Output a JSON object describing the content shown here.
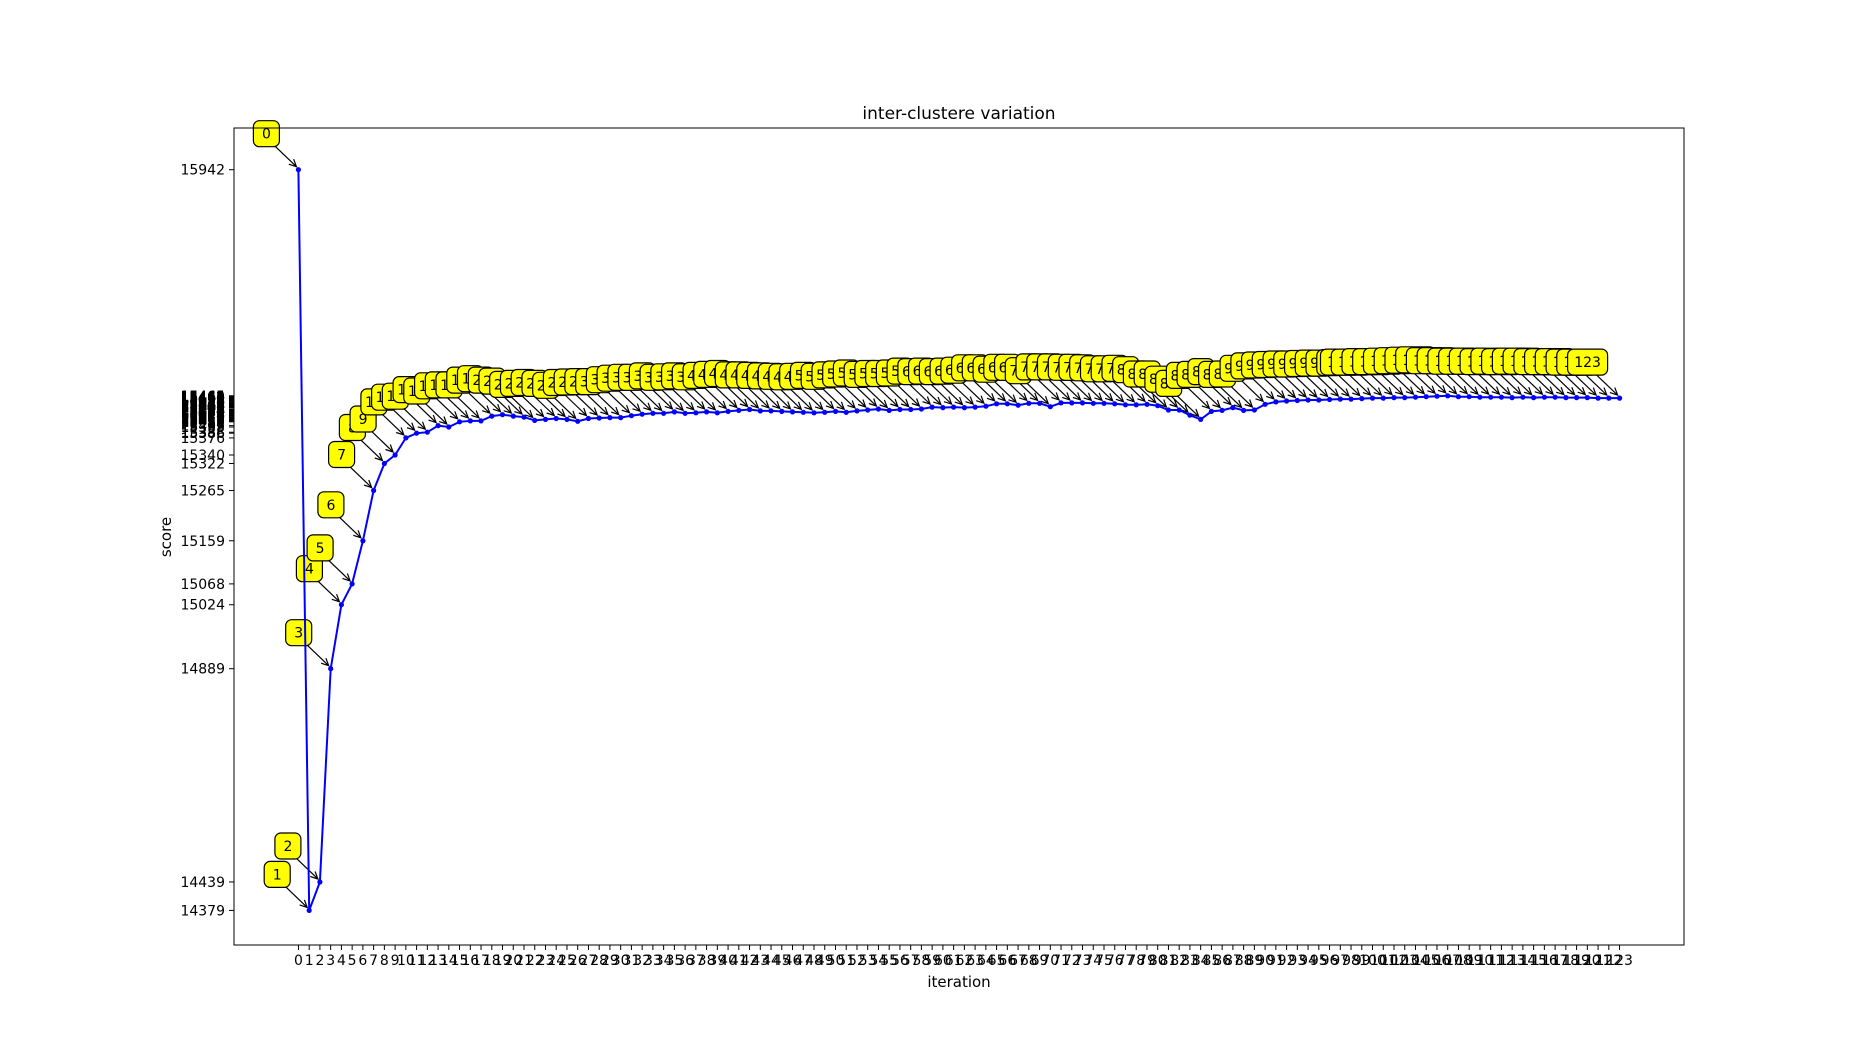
{
  "chart_data": {
    "type": "line",
    "title": "inter-clustere variation",
    "xlabel": "iteration",
    "ylabel": "score",
    "grid": false,
    "legend": "none",
    "line_color": "#0000ff",
    "annotation_fill": "#ffff00",
    "annotation_edge": "#000000",
    "xlim": [
      -6,
      129
    ],
    "ylim": [
      14306,
      16030
    ],
    "x": [
      0,
      1,
      2,
      3,
      4,
      5,
      6,
      7,
      8,
      9,
      10,
      11,
      12,
      13,
      14,
      15,
      16,
      17,
      18,
      19,
      20,
      21,
      22,
      23,
      24,
      25,
      26,
      27,
      28,
      29,
      30,
      31,
      32,
      33,
      34,
      35,
      36,
      37,
      38,
      39,
      40,
      41,
      42,
      43,
      44,
      45,
      46,
      47,
      48,
      49,
      50,
      51,
      52,
      53,
      54,
      55,
      56,
      57,
      58,
      59,
      60,
      61,
      62,
      63,
      64,
      65,
      66,
      67,
      68,
      69,
      70,
      71,
      72,
      73,
      74,
      75,
      76,
      77,
      78,
      79,
      80,
      81,
      82,
      83,
      84,
      85,
      86,
      87,
      88,
      89,
      90,
      91,
      92,
      93,
      94,
      95,
      96,
      97,
      98,
      99,
      100,
      101,
      102,
      103,
      104,
      105,
      106,
      107,
      108,
      109,
      110,
      111,
      112,
      113,
      114,
      115,
      116,
      117,
      118,
      119,
      120,
      121,
      122,
      123
    ],
    "y": [
      15942,
      14379,
      14439,
      14889,
      15024,
      15068,
      15159,
      15265,
      15322,
      15340,
      15376,
      15386,
      15388,
      15402,
      15399,
      15410,
      15412,
      15412,
      15422,
      15425,
      15422,
      15420,
      15413,
      15415,
      15417,
      15415,
      15411,
      15417,
      15418,
      15419,
      15419,
      15423,
      15426,
      15428,
      15428,
      15431,
      15428,
      15429,
      15431,
      15429,
      15432,
      15434,
      15436,
      15433,
      15433,
      15432,
      15431,
      15430,
      15429,
      15430,
      15432,
      15430,
      15433,
      15435,
      15437,
      15434,
      15436,
      15436,
      15437,
      15441,
      15440,
      15441,
      15440,
      15441,
      15443,
      15448,
      15448,
      15445,
      15449,
      15449,
      15442,
      15450,
      15450,
      15450,
      15449,
      15449,
      15448,
      15446,
      15446,
      15447,
      15444,
      15435,
      15435,
      15424,
      15415,
      15432,
      15434,
      15440,
      15434,
      15435,
      15447,
      15452,
      15454,
      15455,
      15456,
      15456,
      15457,
      15458,
      15458,
      15459,
      15460,
      15460,
      15461,
      15461,
      15462,
      15463,
      15464,
      15465,
      15463,
      15463,
      15462,
      15462,
      15462,
      15461,
      15462,
      15461,
      15462,
      15462,
      15461,
      15461,
      15461,
      15460,
      15460,
      15460
    ],
    "ytick_labels": [
      {
        "value": 14379,
        "label": "14379"
      },
      {
        "value": 14439,
        "label": "14439"
      },
      {
        "value": 14889,
        "label": "14889"
      },
      {
        "value": 15024,
        "label": "15024"
      },
      {
        "value": 15068,
        "label": "15068"
      },
      {
        "value": 15159,
        "label": "15159"
      },
      {
        "value": 15265,
        "label": "15265"
      },
      {
        "value": 15322,
        "label": "15322"
      },
      {
        "value": 15340,
        "label": "15340"
      },
      {
        "value": 15376,
        "label": "15376"
      },
      {
        "value": 15942,
        "label": "15942"
      }
    ],
    "annotations": [
      "0",
      "1",
      "2",
      "3",
      "4",
      "5",
      "6",
      "7",
      "8",
      "9",
      "123"
    ]
  }
}
